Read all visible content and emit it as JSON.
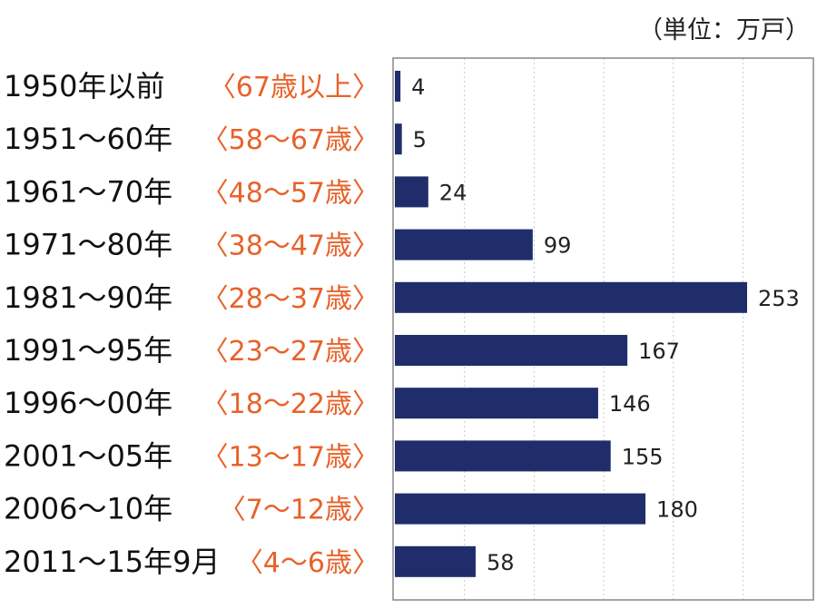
{
  "chart_data": {
    "type": "bar",
    "orientation": "horizontal",
    "unit_note": "（単位：万戸）",
    "categories": [
      "1950年以前",
      "1951〜60年",
      "1961〜70年",
      "1971〜80年",
      "1981〜90年",
      "1991〜95年",
      "1996〜00年",
      "2001〜05年",
      "2006〜10年",
      "2011〜15年9月"
    ],
    "age_labels": [
      "〈67歳以上〉",
      "〈58〜67歳〉",
      "〈48〜57歳〉",
      "〈38〜47歳〉",
      "〈28〜37歳〉",
      "〈23〜27歳〉",
      "〈18〜22歳〉",
      "〈13〜17歳〉",
      "〈7〜12歳〉",
      "〈4〜6歳〉"
    ],
    "values": [
      4,
      5,
      24,
      99,
      253,
      167,
      146,
      155,
      180,
      58
    ],
    "xlim": [
      0,
      300
    ],
    "grid": true,
    "colors": {
      "bar": "#1f2d6b",
      "age_label": "#e8622a",
      "grid": "#c8c8c8",
      "axis": "#888888"
    }
  }
}
